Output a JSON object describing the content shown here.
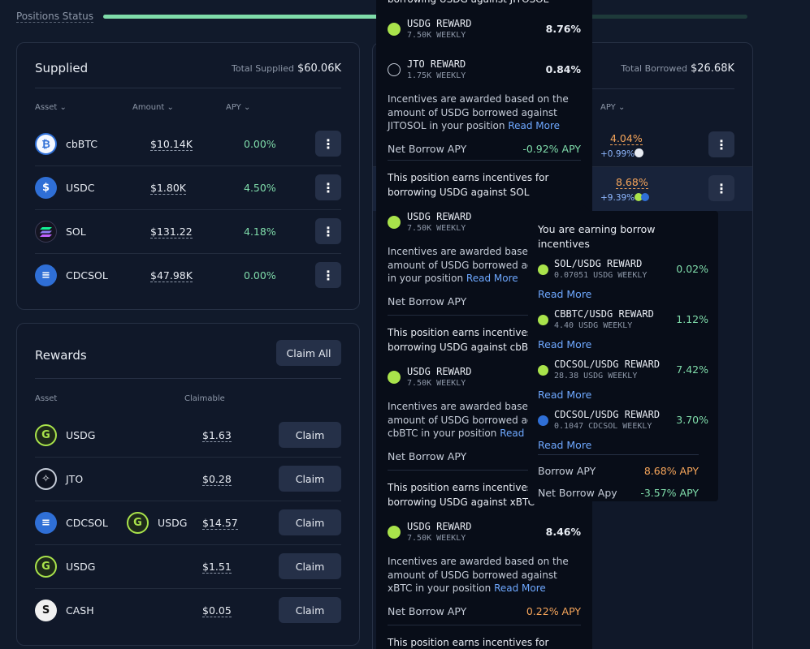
{
  "positions_status": {
    "label": "Positions Status",
    "progress": 0.7
  },
  "supplied": {
    "title": "Supplied",
    "total_label": "Total Supplied",
    "total_value": "$60.06K",
    "headers": {
      "asset": "Asset ⌄",
      "amount": "Amount ⌄",
      "apy": "APY ⌄"
    },
    "rows": [
      {
        "asset": "cbBTC",
        "amount": "$10.14K",
        "apy": "0.00%",
        "icon": "bitcoin-icon",
        "color": "#f5f8ff"
      },
      {
        "asset": "USDC",
        "amount": "$1.80K",
        "apy": "4.50%",
        "icon": "usdc-icon",
        "color": "#2f6fd6"
      },
      {
        "asset": "SOL",
        "amount": "$131.22",
        "apy": "4.18%",
        "icon": "sol-icon",
        "color": "#141421"
      },
      {
        "asset": "CDCSOL",
        "amount": "$47.98K",
        "apy": "0.00%",
        "icon": "cdcsol-icon",
        "color": "#2f6fd6"
      }
    ]
  },
  "borrowed": {
    "total_label": "Total Borrowed",
    "total_value": "$26.68K",
    "apy_header": "APY ⌄",
    "rows": [
      {
        "apy": "4.04%",
        "bonus": "+0.99%"
      },
      {
        "apy": "8.68%",
        "bonus": "+9.39%"
      }
    ]
  },
  "rewards": {
    "title": "Rewards",
    "claim_all": "Claim All",
    "headers": {
      "asset": "Asset",
      "claimable": "Claimable"
    },
    "claim_label": "Claim",
    "rows": [
      {
        "asset": "USDG",
        "extra": "",
        "amount": "$1.63"
      },
      {
        "asset": "JTO",
        "extra": "",
        "amount": "$0.28"
      },
      {
        "asset": "CDCSOL",
        "extra": "USDG",
        "amount": "$14.57"
      },
      {
        "asset": "USDG",
        "extra": "",
        "amount": "$1.51"
      },
      {
        "asset": "CASH",
        "extra": "",
        "amount": "$0.05"
      }
    ]
  },
  "tooltip_left": {
    "top_title": "borrowing USDG against JITOSOL",
    "s1_rewards": [
      {
        "name": "USDG REWARD",
        "sub": "7.50K WEEKLY",
        "pct": "8.76%"
      },
      {
        "name": "JTO REWARD",
        "sub": "1.75K WEEKLY",
        "pct": "0.84%"
      }
    ],
    "s1_desc": "Incentives are awarded based on the amount of USDG borrowed against JITOSOL in your position",
    "read_more": "Read More",
    "net_label": "Net Borrow APY",
    "s1_net": "-0.92% APY",
    "s2_title": "This position earns incentives for borrowing USDG against SOL",
    "s2_reward": {
      "name": "USDG REWARD",
      "sub": "7.50K WEEKLY"
    },
    "s2_desc": "Incentives are awarded based on the amount of USDG borrowed against SOL in your position",
    "s3_title": "This position earns incentives for borrowing USDG against cbBTC",
    "s3_reward": {
      "name": "USDG REWARD",
      "sub": "7.50K WEEKLY"
    },
    "s3_desc": "Incentives are awarded based on the amount of USDG borrowed against cbBTC in your position",
    "s4_title": "This position earns incentives for borrowing USDG against xBTC",
    "s4_reward": {
      "name": "USDG REWARD",
      "sub": "7.50K WEEKLY",
      "pct": "8.46%"
    },
    "s4_desc": "Incentives are awarded based on the amount of USDG borrowed against xBTC in your position",
    "s4_net": "0.22% APY",
    "s5_title": "This position earns incentives for"
  },
  "tooltip_right": {
    "title": "You are earning borrow incentives",
    "rewards": [
      {
        "name": "SOL/USDG REWARD",
        "sub": "0.07051 USDG WEEKLY",
        "pct": "0.02%"
      },
      {
        "name": "CBBTC/USDG REWARD",
        "sub": "4.40 USDG WEEKLY",
        "pct": "1.12%"
      },
      {
        "name": "CDCSOL/USDG REWARD",
        "sub": "28.38 USDG WEEKLY",
        "pct": "7.42%"
      },
      {
        "name": "CDCSOL/USDG REWARD",
        "sub": "0.1047 CDCSOL WEEKLY",
        "pct": "3.70%"
      }
    ],
    "read_more": "Read More",
    "borrow_apy_label": "Borrow APY",
    "borrow_apy": "8.68% APY",
    "net_label": "Net Borrow Apy",
    "net_apy": "-3.57% APY"
  }
}
